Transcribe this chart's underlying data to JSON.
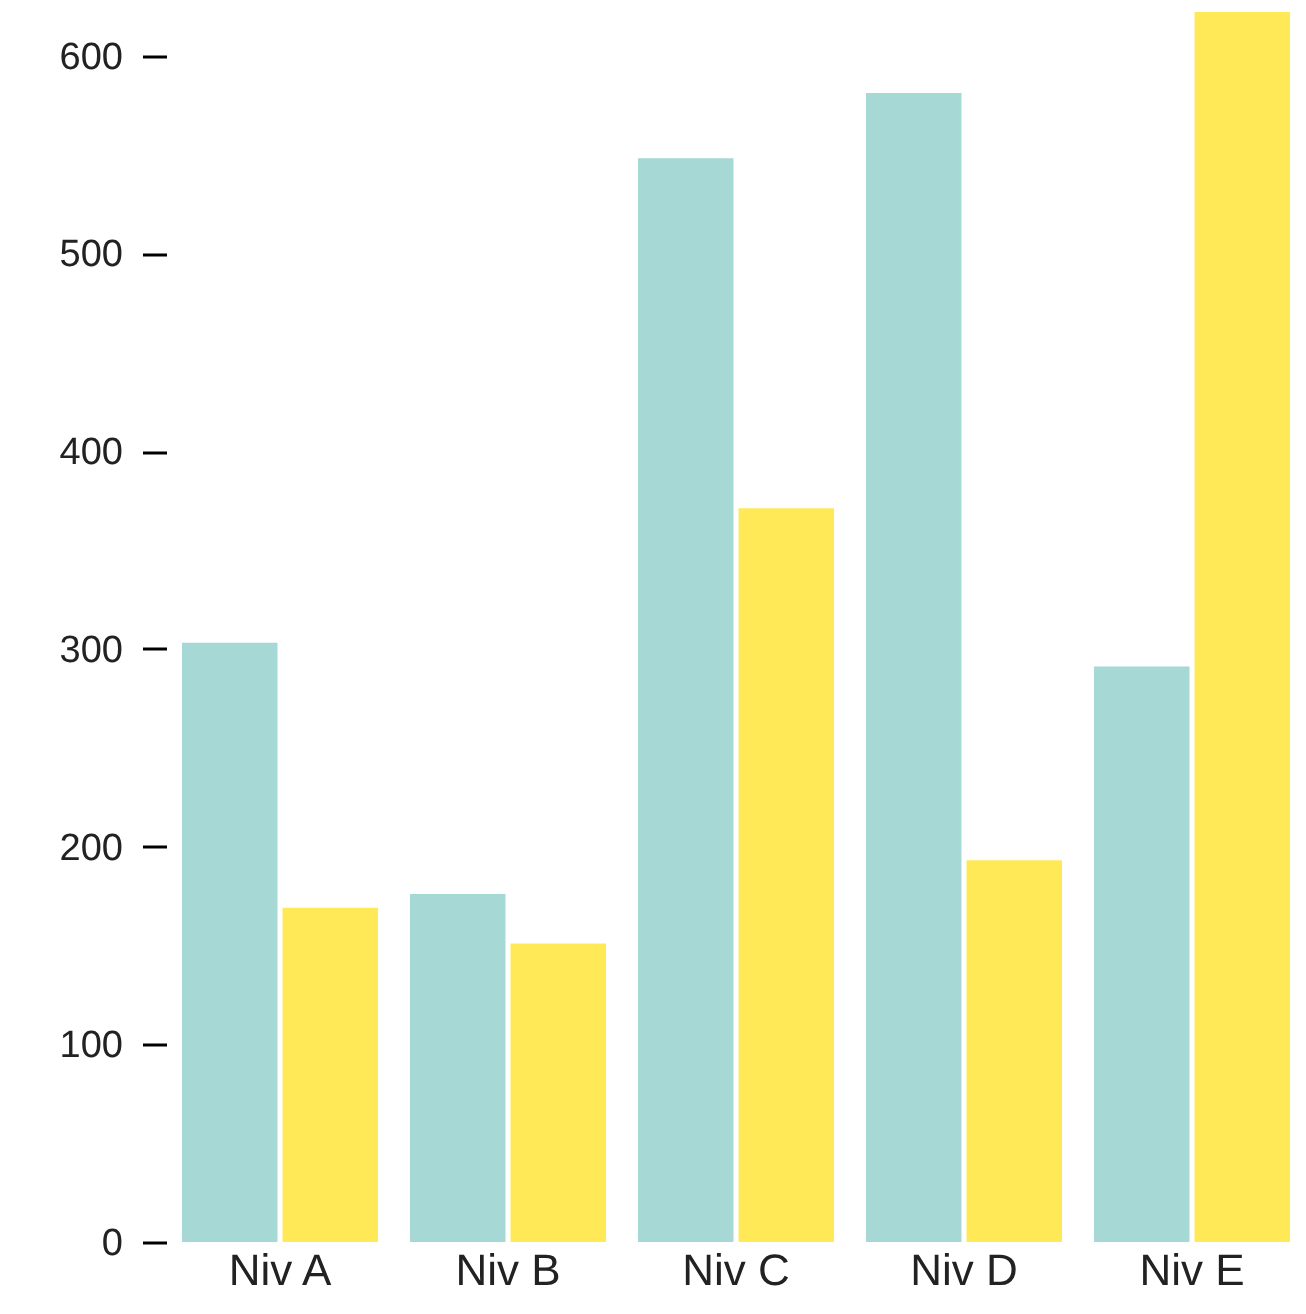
{
  "chart_data": {
    "type": "bar",
    "categories": [
      "Niv A",
      "Niv B",
      "Niv C",
      "Niv D",
      "Niv E"
    ],
    "series": [
      {
        "color": "#a6d8d5",
        "values": [
          303,
          176,
          548,
          581,
          291
        ]
      },
      {
        "color": "#ffe957",
        "values": [
          169,
          151,
          371,
          193,
          622
        ]
      }
    ],
    "ylim": [
      0,
      622
    ],
    "yticks": [
      0,
      100,
      200,
      300,
      400,
      500,
      600
    ],
    "grid": false
  }
}
